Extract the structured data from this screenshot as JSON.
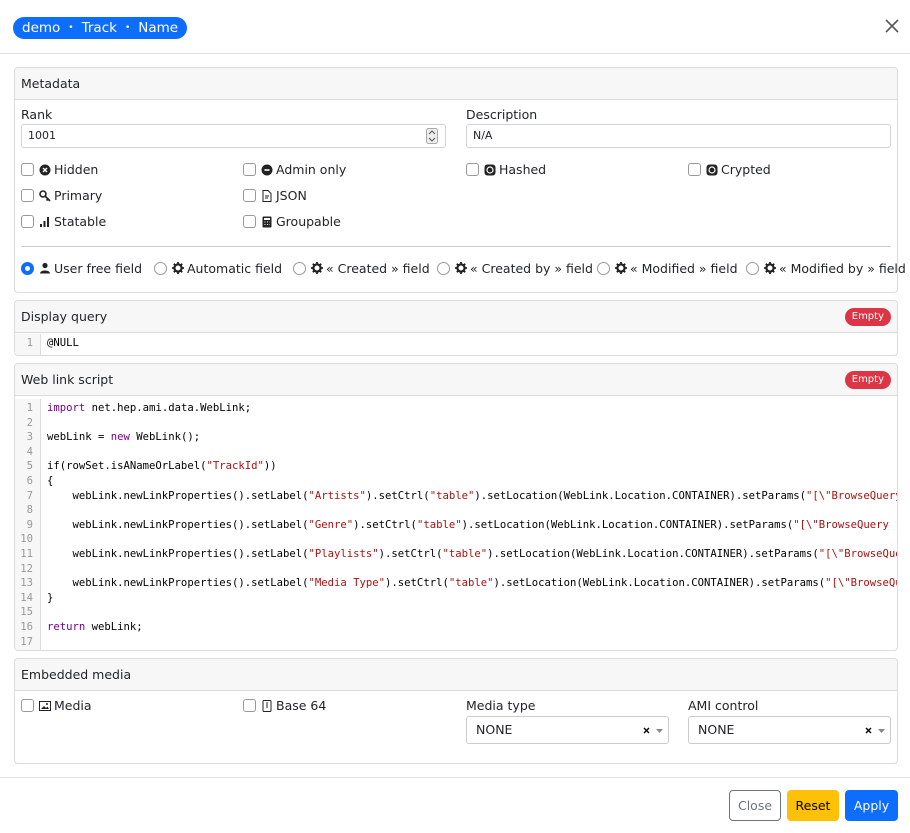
{
  "header": {
    "breadcrumb": [
      "demo",
      "Track",
      "Name"
    ],
    "separator": "•"
  },
  "metadata": {
    "title": "Metadata",
    "rank": {
      "label": "Rank",
      "value": "1001"
    },
    "description": {
      "label": "Description",
      "value": "N/A"
    },
    "checkboxes": [
      [
        "Hidden",
        "Admin only",
        "Hashed",
        "Crypted"
      ],
      [
        "Primary",
        "JSON"
      ],
      [
        "Statable",
        "Groupable"
      ]
    ],
    "radios": [
      "User free field",
      "Automatic field",
      "« Created » field",
      "« Created by » field",
      "« Modified » field",
      "« Modified by » field"
    ],
    "selected_radio": 0
  },
  "display_query": {
    "title": "Display query",
    "badge": "Empty",
    "line_numbers": [
      1
    ],
    "lines": [
      "@NULL"
    ]
  },
  "web_link_script": {
    "title": "Web link script",
    "badge": "Empty",
    "line_numbers": [
      1,
      2,
      3,
      4,
      5,
      6,
      7,
      8,
      9,
      10,
      11,
      12,
      13,
      14,
      15,
      16,
      17
    ],
    "lines": [
      "import net.hep.ami.data.WebLink;",
      "",
      "webLink = new WebLink();",
      "",
      "if(rowSet.isANameOrLabel(\"TrackId\"))",
      "{",
      "    webLink.newLinkProperties().setLabel(\"Artists\").setCtrl(\"table\").setLocation(WebLink.Location.CONTAINER).setParams(\"[\\\"BrowseQuery -c",
      "",
      "    webLink.newLinkProperties().setLabel(\"Genre\").setCtrl(\"table\").setLocation(WebLink.Location.CONTAINER).setParams(\"[\\\"BrowseQuery -cat",
      "",
      "    webLink.newLinkProperties().setLabel(\"Playlists\").setCtrl(\"table\").setLocation(WebLink.Location.CONTAINER).setParams(\"[\\\"BrowseQuery",
      "",
      "    webLink.newLinkProperties().setLabel(\"Media Type\").setCtrl(\"table\").setLocation(WebLink.Location.CONTAINER).setParams(\"[\\\"BrowseQuery",
      "}",
      "",
      "return webLink;",
      ""
    ]
  },
  "embedded_media": {
    "title": "Embedded media",
    "checkboxes": [
      "Media",
      "Base 64"
    ],
    "media_type": {
      "label": "Media type",
      "value": "NONE"
    },
    "ami_control": {
      "label": "AMI control",
      "value": "NONE"
    }
  },
  "footer": {
    "buttons": [
      "Close",
      "Reset",
      "Apply"
    ]
  }
}
